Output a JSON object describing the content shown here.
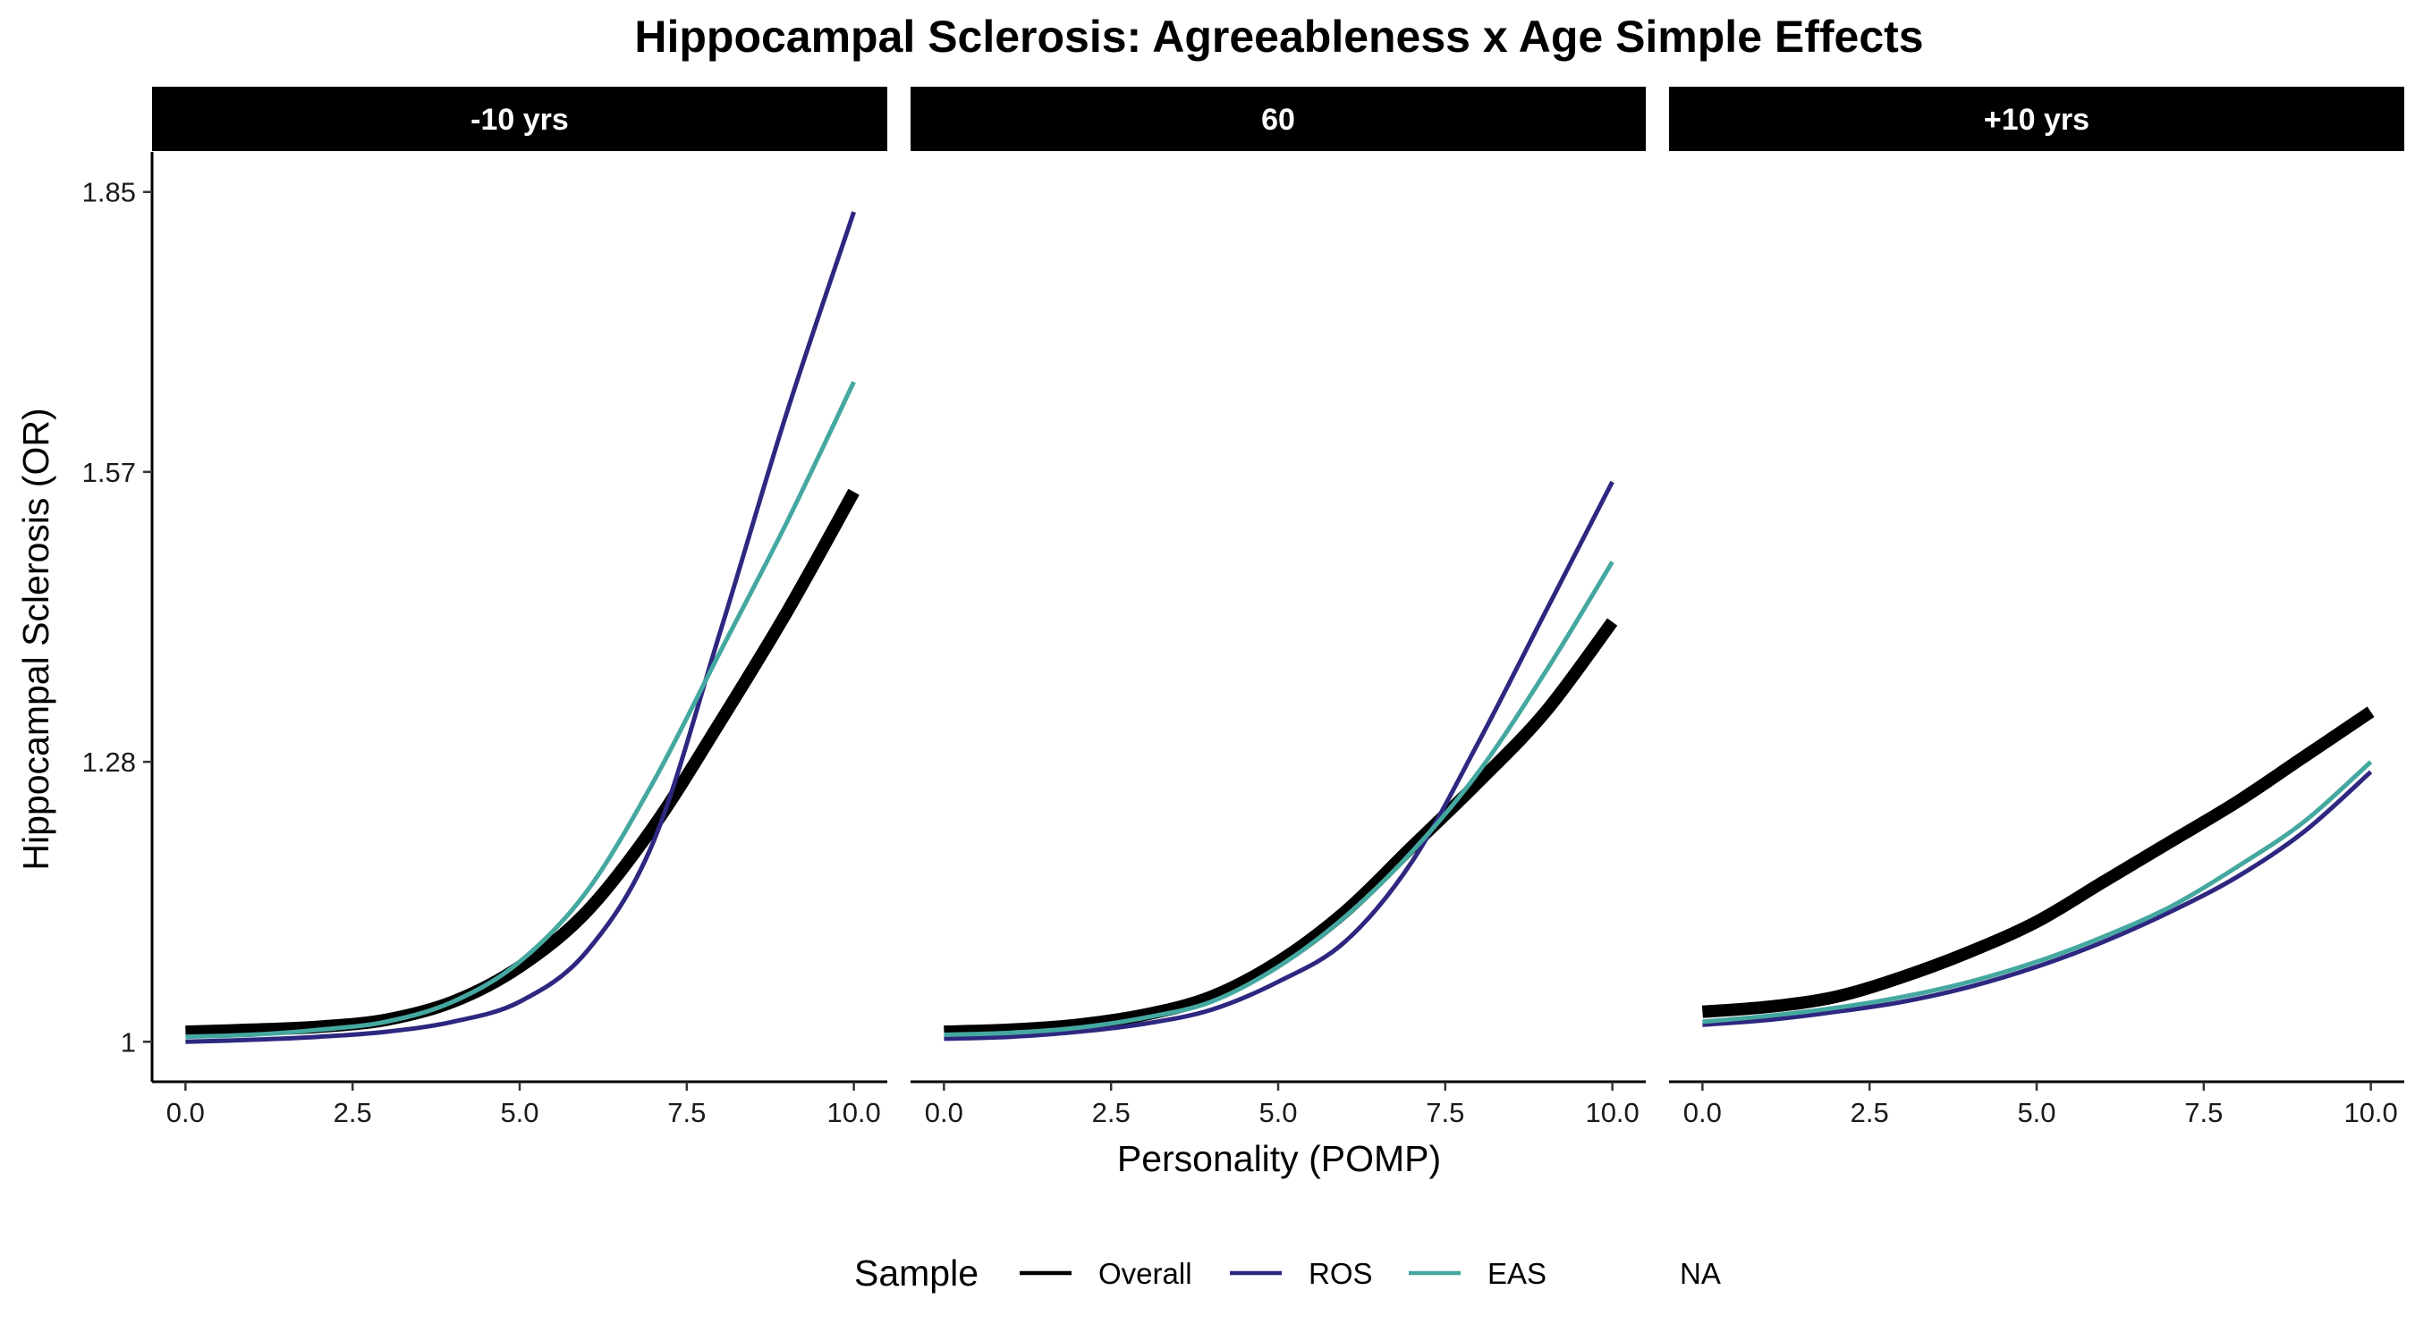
{
  "chart_data": {
    "type": "line",
    "title": "Hippocampal Sclerosis: Agreeableness x Age Simple Effects",
    "xlabel": "Personality (POMP)",
    "ylabel": "Hippocampal Sclerosis (OR)",
    "xlim": [
      -0.5,
      10.5
    ],
    "ylim": [
      0.96,
      1.89
    ],
    "x_ticks": [
      0,
      2.5,
      5,
      7.5,
      10
    ],
    "x_tick_labels": [
      "0.0",
      "2.5",
      "5.0",
      "7.5",
      "10.0"
    ],
    "y_ticks": [
      1,
      1.28,
      1.57,
      1.85
    ],
    "y_tick_labels": [
      "1",
      "1.28",
      "1.57",
      "1.85"
    ],
    "grid": false,
    "legend": {
      "title": "Sample",
      "position": "bottom",
      "entries": [
        {
          "label": "Overall",
          "color": "#000000"
        },
        {
          "label": "ROS",
          "color": "#2e2780"
        },
        {
          "label": "EAS",
          "color": "#45a8a0"
        },
        {
          "label": "NA",
          "color": null
        }
      ]
    },
    "series_styles": [
      {
        "name": "Overall",
        "color": "#000000",
        "weight": "thick"
      },
      {
        "name": "ROS",
        "color": "#2e2780",
        "weight": "thin"
      },
      {
        "name": "EAS",
        "color": "#45a8a0",
        "weight": "thin"
      }
    ],
    "x": [
      0,
      1,
      2,
      3,
      4,
      5,
      6,
      7,
      8,
      9,
      10
    ],
    "panels": [
      {
        "label": "-10 yrs",
        "series": [
          {
            "name": "Overall",
            "values": [
              1.01,
              1.012,
              1.015,
              1.022,
              1.04,
              1.075,
              1.13,
              1.215,
              1.32,
              1.43,
              1.55
            ]
          },
          {
            "name": "ROS",
            "values": [
              1.0,
              1.002,
              1.005,
              1.01,
              1.02,
              1.04,
              1.09,
              1.2,
              1.41,
              1.63,
              1.83
            ]
          },
          {
            "name": "EAS",
            "values": [
              1.005,
              1.007,
              1.012,
              1.02,
              1.04,
              1.08,
              1.15,
              1.26,
              1.39,
              1.52,
              1.66
            ]
          }
        ]
      },
      {
        "label": "60",
        "series": [
          {
            "name": "Overall",
            "values": [
              1.01,
              1.012,
              1.017,
              1.027,
              1.045,
              1.08,
              1.13,
              1.195,
              1.26,
              1.33,
              1.42
            ]
          },
          {
            "name": "ROS",
            "values": [
              1.003,
              1.005,
              1.01,
              1.018,
              1.032,
              1.06,
              1.1,
              1.18,
              1.3,
              1.43,
              1.56
            ]
          },
          {
            "name": "EAS",
            "values": [
              1.007,
              1.009,
              1.014,
              1.024,
              1.04,
              1.075,
              1.125,
              1.19,
              1.27,
              1.37,
              1.48
            ]
          }
        ]
      },
      {
        "label": "+10 yrs",
        "series": [
          {
            "name": "Overall",
            "values": [
              1.03,
              1.035,
              1.045,
              1.065,
              1.09,
              1.12,
              1.16,
              1.2,
              1.24,
              1.285,
              1.33
            ]
          },
          {
            "name": "ROS",
            "values": [
              1.017,
              1.022,
              1.03,
              1.04,
              1.055,
              1.075,
              1.1,
              1.13,
              1.165,
              1.21,
              1.27
            ]
          },
          {
            "name": "EAS",
            "values": [
              1.02,
              1.026,
              1.034,
              1.045,
              1.06,
              1.08,
              1.105,
              1.135,
              1.175,
              1.22,
              1.28
            ]
          }
        ]
      }
    ]
  }
}
